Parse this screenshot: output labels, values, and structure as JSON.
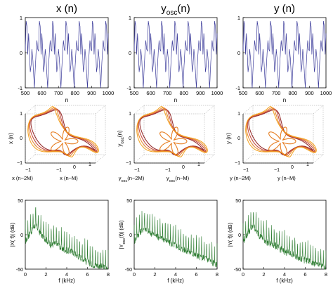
{
  "titles": [
    {
      "main": "x (n)",
      "sub": ""
    },
    {
      "main": "y",
      "sub": "osc",
      "rest": "(n)"
    },
    {
      "main": "y (n)",
      "sub": ""
    }
  ],
  "chart_data": [
    {
      "type": "line",
      "title": "x (n)",
      "xlabel": "n",
      "ylabel": "",
      "xlim": [
        500,
        1000
      ],
      "ylim": [
        -1,
        1
      ],
      "xticks": [
        500,
        600,
        700,
        800,
        900,
        1000
      ],
      "yticks": [
        -1,
        0,
        1
      ],
      "period": 80,
      "pattern": [
        0.05,
        0.9,
        0.75,
        -0.05,
        0.55,
        0.05,
        -0.55,
        -0.35,
        0.1,
        -0.15,
        -0.6,
        -1.0,
        -0.45,
        0.0,
        0.35,
        0.1,
        0.05
      ]
    },
    {
      "type": "line",
      "title": "y_osc(n)",
      "xlabel": "n",
      "ylabel": "",
      "xlim": [
        500,
        1000
      ],
      "ylim": [
        -1,
        1
      ],
      "xticks": [
        500,
        600,
        700,
        800,
        900,
        1000
      ],
      "yticks": [
        -1,
        0,
        1
      ],
      "period": 80,
      "pattern": [
        0.05,
        0.9,
        0.75,
        -0.05,
        0.55,
        0.05,
        -0.55,
        -0.35,
        0.1,
        -0.15,
        -0.6,
        -1.0,
        -0.45,
        0.0,
        0.35,
        0.1,
        0.05
      ]
    },
    {
      "type": "line",
      "title": "y (n)",
      "xlabel": "n",
      "ylabel": "",
      "xlim": [
        500,
        1000
      ],
      "ylim": [
        -1,
        1
      ],
      "xticks": [
        500,
        600,
        700,
        800,
        900,
        1000
      ],
      "yticks": [
        -1,
        0,
        1
      ],
      "period": 80,
      "pattern": [
        0.05,
        0.9,
        0.75,
        -0.05,
        0.55,
        0.05,
        -0.55,
        -0.35,
        0.1,
        -0.15,
        -0.6,
        -1.0,
        -0.45,
        0.0,
        0.35,
        0.1,
        0.05
      ]
    },
    {
      "type": "scatter",
      "title": "",
      "zlabel": "x (n)",
      "xlabel": "x (n−2M)",
      "ylabel": "x (n−M)",
      "ticks_left": [
        "1",
        "0",
        "−1"
      ],
      "ticks_bottom_left": [
        "−1"
      ],
      "ticks_bottom_right": [
        "−1",
        "0",
        "1"
      ],
      "colors": [
        "#8b1a1a",
        "#c0392b",
        "#e67e22",
        "#f39c12"
      ]
    },
    {
      "type": "scatter",
      "title": "",
      "zlabel": "y_osc(n)",
      "xlabel": "y_osc(n−2M)",
      "ylabel": "y_osc(n−M)",
      "ticks_left": [
        "1",
        "0",
        "−1"
      ],
      "ticks_bottom_left": [
        "−1"
      ],
      "ticks_bottom_right": [
        "−1",
        "0",
        "1"
      ],
      "colors": [
        "#8b1a1a",
        "#c0392b",
        "#e67e22",
        "#f39c12"
      ]
    },
    {
      "type": "scatter",
      "title": "",
      "zlabel": "y (n)",
      "xlabel": "y (n−2M)",
      "ylabel": "y (n−M)",
      "ticks_left": [
        "1",
        "0",
        "−1"
      ],
      "ticks_bottom_left": [
        "−1"
      ],
      "ticks_bottom_right": [
        "−1",
        "0",
        "1"
      ],
      "colors": [
        "#8b1a1a",
        "#c0392b",
        "#e67e22",
        "#f39c12"
      ]
    },
    {
      "type": "line",
      "title": "",
      "xlabel": "f (kHz)",
      "ylabel": "|X( f)| (dB)",
      "xlim": [
        0,
        8
      ],
      "ylim": [
        -50,
        50
      ],
      "xticks": [
        0,
        2,
        4,
        6,
        8
      ],
      "yticks": [
        -50,
        0,
        50
      ],
      "envelope": [
        [
          0,
          15
        ],
        [
          0.5,
          28
        ],
        [
          1,
          40
        ],
        [
          1.5,
          25
        ],
        [
          2,
          18
        ],
        [
          2.5,
          10
        ],
        [
          3,
          12
        ],
        [
          3.5,
          5
        ],
        [
          4,
          2
        ],
        [
          4.5,
          0
        ],
        [
          5,
          -5
        ],
        [
          5.5,
          -10
        ],
        [
          6,
          -15
        ],
        [
          6.5,
          -18
        ],
        [
          7,
          -20
        ],
        [
          7.5,
          -22
        ],
        [
          8,
          -25
        ]
      ],
      "harmonic_spacing": 0.25,
      "color": "#2e7d32"
    },
    {
      "type": "line",
      "title": "",
      "xlabel": "f (kHz)",
      "ylabel": "|Y_osc(f)| (dB)",
      "xlim": [
        0,
        8
      ],
      "ylim": [
        -50,
        50
      ],
      "xticks": [
        0,
        2,
        4,
        6,
        8
      ],
      "yticks": [
        -50,
        0,
        50
      ],
      "envelope": [
        [
          0,
          15
        ],
        [
          0.5,
          28
        ],
        [
          1,
          35
        ],
        [
          1.5,
          28
        ],
        [
          2,
          25
        ],
        [
          2.5,
          20
        ],
        [
          3,
          18
        ],
        [
          3.5,
          12
        ],
        [
          4,
          10
        ],
        [
          4.5,
          5
        ],
        [
          5,
          2
        ],
        [
          5.5,
          -2
        ],
        [
          6,
          -5
        ],
        [
          6.5,
          -8
        ],
        [
          7,
          -10
        ],
        [
          7.5,
          -15
        ],
        [
          8,
          -20
        ]
      ],
      "harmonic_spacing": 0.25,
      "color": "#2e7d32"
    },
    {
      "type": "line",
      "title": "",
      "xlabel": "f (kHz)",
      "ylabel": "|Y( f)| (dB)",
      "xlim": [
        0,
        8
      ],
      "ylim": [
        -50,
        50
      ],
      "xticks": [
        0,
        2,
        4,
        6,
        8
      ],
      "yticks": [
        -50,
        0,
        50
      ],
      "envelope": [
        [
          0,
          15
        ],
        [
          0.5,
          28
        ],
        [
          1,
          38
        ],
        [
          1.5,
          25
        ],
        [
          2,
          18
        ],
        [
          2.5,
          12
        ],
        [
          3,
          10
        ],
        [
          3.5,
          5
        ],
        [
          4,
          0
        ],
        [
          4.5,
          -2
        ],
        [
          5,
          -5
        ],
        [
          5.5,
          -10
        ],
        [
          6,
          -12
        ],
        [
          6.5,
          -15
        ],
        [
          7,
          -18
        ],
        [
          7.5,
          -20
        ],
        [
          8,
          -25
        ]
      ],
      "harmonic_spacing": 0.25,
      "color": "#2e7d32"
    }
  ]
}
